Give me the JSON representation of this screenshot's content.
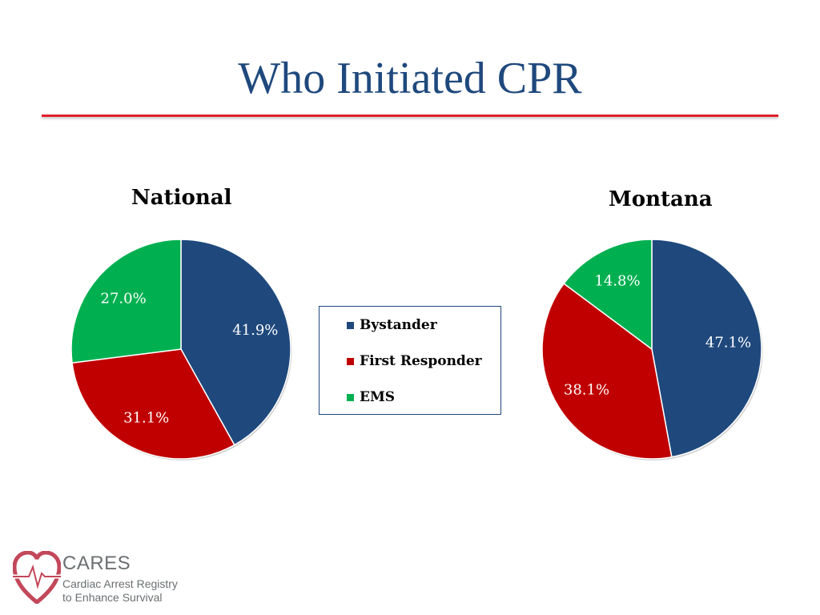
{
  "slide": {
    "title": "Who Initiated CPR"
  },
  "chart_data": [
    {
      "type": "pie",
      "title": "National",
      "categories": [
        "Bystander",
        "First Responder",
        "EMS"
      ],
      "values": [
        41.9,
        31.1,
        27.0
      ],
      "labels": [
        "41.9%",
        "31.1%",
        "27.0%"
      ],
      "colors": [
        "#1f497d",
        "#c00000",
        "#00b050"
      ],
      "label_colors": [
        "#ffffff",
        "#ffffff",
        "#ffffff"
      ]
    },
    {
      "type": "pie",
      "title": "Montana",
      "categories": [
        "Bystander",
        "First Responder",
        "EMS"
      ],
      "values": [
        47.1,
        38.1,
        14.8
      ],
      "labels": [
        "47.1%",
        "38.1%",
        "14.8%"
      ],
      "colors": [
        "#1f497d",
        "#c00000",
        "#00b050"
      ],
      "label_colors": [
        "#ffffff",
        "#ffffff",
        "#ffffff"
      ]
    }
  ],
  "legend": {
    "items": [
      {
        "label": "Bystander",
        "color": "#1f497d"
      },
      {
        "label": "First Responder",
        "color": "#c00000"
      },
      {
        "label": "EMS",
        "color": "#00b050"
      }
    ]
  },
  "logo": {
    "name": "CARES",
    "tagline_line1": "Cardiac Arrest Registry",
    "tagline_line2": "to Enhance Survival",
    "colors": {
      "heart": "#c2485a",
      "text": "#6b6f72"
    }
  }
}
